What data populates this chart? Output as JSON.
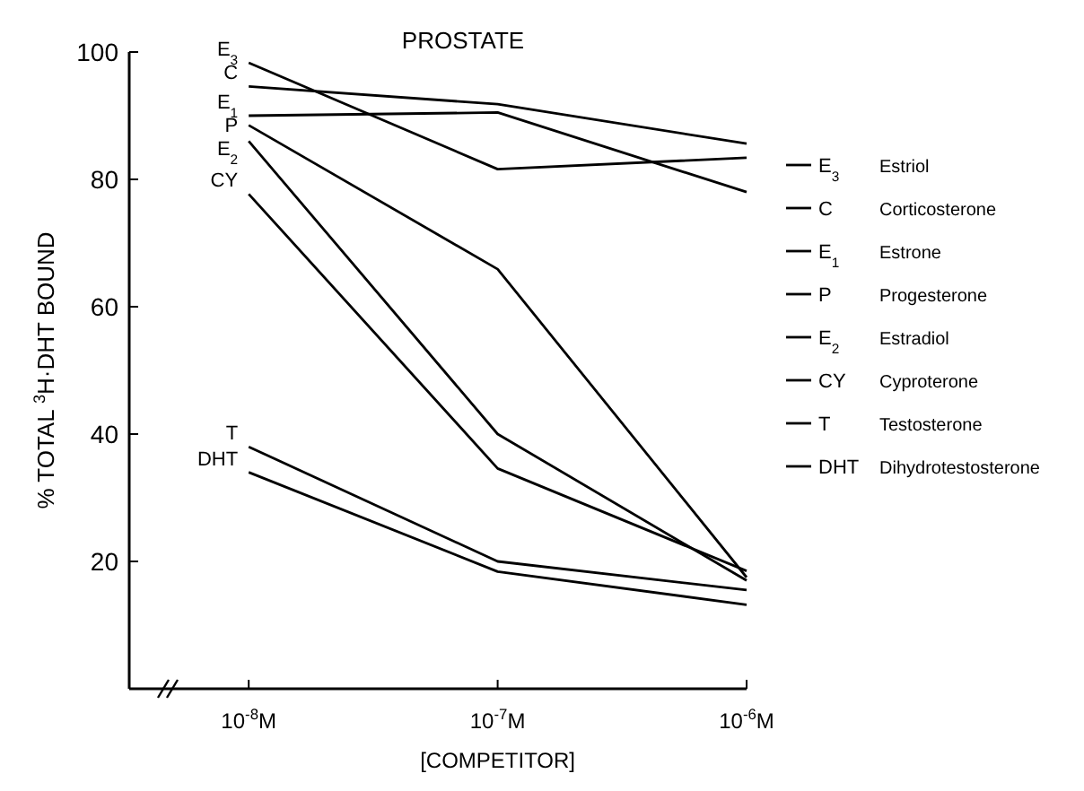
{
  "chart_data": {
    "type": "line",
    "title": "PROSTATE",
    "xlabel": "[COMPETITOR]",
    "ylabel": "% TOTAL $^{3}$H·DHT BOUND",
    "categories": [
      "10$^{-8}$M",
      "10$^{-7}$M",
      "10$^{-6}$M"
    ],
    "ylim": [
      0,
      100
    ],
    "yticks": [
      20,
      40,
      60,
      80,
      100
    ],
    "grid": false,
    "marker": "none",
    "line_style": "solid",
    "legend": "right",
    "series": [
      {
        "name": "E$_{3}$",
        "color": "#000000",
        "values": [
          98.3,
          81.6,
          83.4
        ]
      },
      {
        "name": "C",
        "color": "#000000",
        "values": [
          94.6,
          91.8,
          85.6
        ]
      },
      {
        "name": "E$_{1}$",
        "color": "#000000",
        "values": [
          90,
          90.5,
          78
        ]
      },
      {
        "name": "P",
        "color": "#000000",
        "values": [
          88.5,
          65.9,
          17.5
        ]
      },
      {
        "name": "E$_{2}$",
        "color": "#000000",
        "values": [
          86,
          40,
          17
        ]
      },
      {
        "name": "CY",
        "color": "#000000",
        "values": [
          77.7,
          34.6,
          18.5
        ]
      },
      {
        "name": "T",
        "color": "#000000",
        "values": [
          38,
          20,
          15.5
        ]
      },
      {
        "name": "DHT",
        "color": "#000000",
        "values": [
          34,
          18.4,
          13.2
        ]
      }
    ],
    "annotations": [
      "Estriol",
      "Corticosterone",
      "Estrone",
      "Progesterone",
      "Estradiol",
      "Cyproterone",
      "Testosterone",
      "Dihydrotestosterone"
    ]
  }
}
